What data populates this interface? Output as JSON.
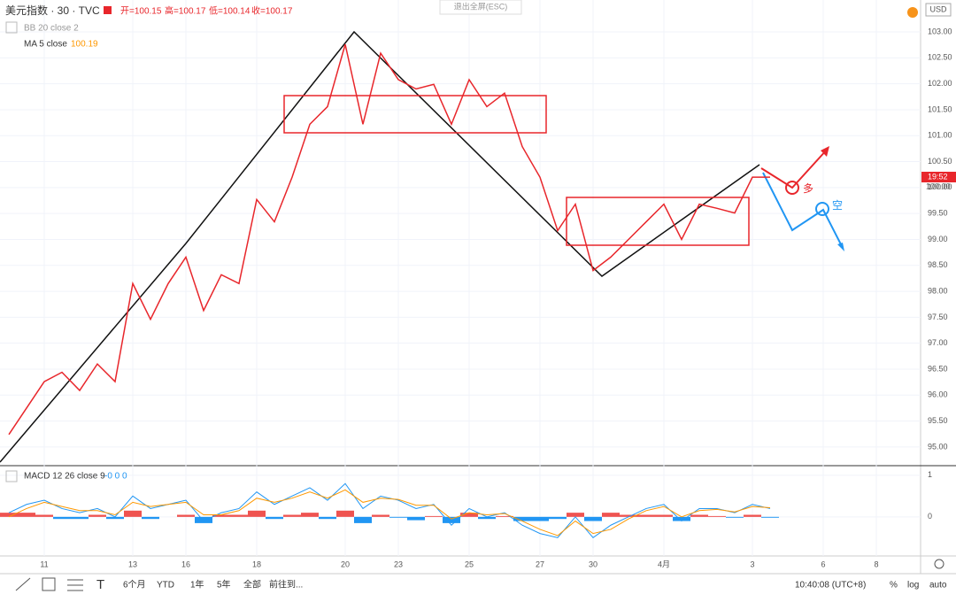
{
  "header": {
    "symbol": "美元指数 · 30 · TVC",
    "open": "开=100.15",
    "high": "高=100.17",
    "low": "低=100.14",
    "close": "收=100.17",
    "bb": "BB 20 close 2",
    "ma": "MA 5 close",
    "ma_value": "100.19",
    "exit": "退出全屏(ESC)",
    "currency": "USD",
    "price_tag": "19:52",
    "price_tag2": "100.00",
    "long": "多",
    "short": "空"
  },
  "toolbar": {
    "ranges": [
      "6个月",
      "YTD",
      "1年",
      "5年",
      "全部"
    ],
    "goto": "前往到...",
    "time": "10:40:08 (UTC+8)",
    "pct": "%",
    "log": "log",
    "auto": "auto"
  },
  "chart_data": [
    {
      "type": "line",
      "color": "#e8262b",
      "categories": [
        null,
        null,
        "11",
        null,
        null,
        null,
        null,
        "13",
        null,
        null,
        "16",
        null,
        null,
        null,
        "18",
        null,
        null,
        null,
        null,
        "20",
        null,
        null,
        "23",
        null,
        null,
        null,
        "25",
        null,
        null,
        null,
        "27",
        null,
        null,
        "30",
        null,
        null,
        null,
        "4月",
        null,
        null,
        null,
        null,
        "3",
        null,
        null,
        null,
        "6",
        null,
        null,
        "8",
        null,
        null
      ],
      "values": [
        95.24,
        95.75,
        96.26,
        96.44,
        96.09,
        96.6,
        96.26,
        98.15,
        97.46,
        98.15,
        98.66,
        97.63,
        98.32,
        98.15,
        99.77,
        99.34,
        100.2,
        101.22,
        101.56,
        102.76,
        101.22,
        102.59,
        102.08,
        101.9,
        101.99,
        101.22,
        102.08,
        101.56,
        101.82,
        100.79,
        100.2,
        99.17,
        99.68,
        98.4,
        98.66,
        99.0,
        99.34,
        99.68,
        99.0,
        99.68,
        99.6,
        99.51,
        100.2,
        100.2,
        null,
        null,
        null,
        null,
        null,
        null,
        null,
        null
      ],
      "ylim": [
        94.64,
        103.615
      ],
      "yticks": [
        {
          "value": 95,
          "label": "95.00"
        },
        {
          "value": 95.5,
          "label": "95.50"
        },
        {
          "value": 96,
          "label": "96.00"
        },
        {
          "value": 96.5,
          "label": "96.50"
        },
        {
          "value": 97,
          "label": "97.00"
        },
        {
          "value": 97.5,
          "label": "97.50"
        },
        {
          "value": 98,
          "label": "98.00"
        },
        {
          "value": 98.5,
          "label": "98.50"
        },
        {
          "value": 99,
          "label": "99.00"
        },
        {
          "value": 99.5,
          "label": "99.50"
        },
        {
          "value": 100,
          "label": "100.00"
        },
        {
          "value": 100.5,
          "label": "100.50"
        },
        {
          "value": 101,
          "label": "101.00"
        },
        {
          "value": 101.5,
          "label": "101.50"
        },
        {
          "value": 102,
          "label": "102.00"
        },
        {
          "value": 102.5,
          "label": "102.50"
        },
        {
          "value": 103,
          "label": "103.00"
        }
      ],
      "grid": true
    },
    {
      "type": "macd",
      "title": "MACD 12 26 close 9",
      "subtitle": "-0 0 0",
      "series": [
        {
          "color": "#2196f3",
          "values": [
            0.1,
            0.3,
            0.4,
            0.2,
            0.1,
            0.2,
            0.0,
            0.5,
            0.2,
            0.3,
            0.4,
            -0.1,
            0.1,
            0.2,
            0.6,
            0.3,
            0.5,
            0.7,
            0.4,
            0.8,
            0.2,
            0.5,
            0.4,
            0.2,
            0.3,
            -0.2,
            0.2,
            0.0,
            0.1,
            -0.2,
            -0.4,
            -0.5,
            0.0,
            -0.5,
            -0.2,
            0.0,
            0.2,
            0.3,
            -0.1,
            0.2,
            0.2,
            0.1,
            0.3,
            0.2,
            null,
            null,
            null,
            null,
            null,
            null,
            null,
            null
          ]
        },
        {
          "color": "#ff9800",
          "values": [
            0.0,
            0.2,
            0.35,
            0.25,
            0.15,
            0.15,
            0.05,
            0.35,
            0.25,
            0.3,
            0.35,
            0.05,
            0.05,
            0.15,
            0.45,
            0.35,
            0.45,
            0.6,
            0.45,
            0.65,
            0.35,
            0.45,
            0.42,
            0.28,
            0.28,
            -0.05,
            0.1,
            0.05,
            0.08,
            -0.1,
            -0.3,
            -0.45,
            -0.1,
            -0.4,
            -0.3,
            -0.05,
            0.15,
            0.25,
            0.0,
            0.15,
            0.18,
            0.12,
            0.25,
            0.22,
            null,
            null,
            null,
            null,
            null,
            null,
            null,
            null
          ]
        }
      ],
      "histogram": [
        0.1,
        0.1,
        0.05,
        -0.05,
        -0.05,
        0.05,
        -0.05,
        0.15,
        -0.05,
        0.0,
        0.05,
        -0.15,
        0.05,
        0.05,
        0.15,
        -0.05,
        0.05,
        0.1,
        -0.05,
        0.15,
        -0.15,
        0.05,
        -0.02,
        -0.08,
        0.02,
        -0.15,
        0.1,
        -0.05,
        0.02,
        -0.1,
        -0.1,
        -0.05,
        0.1,
        -0.1,
        0.1,
        0.05,
        0.05,
        0.05,
        -0.1,
        0.05,
        0.02,
        -0.02,
        0.05,
        -0.02,
        null,
        null,
        null,
        null,
        null,
        null,
        null,
        null
      ],
      "ylim": [
        -0.94,
        1.21
      ],
      "yticks": [
        0,
        1
      ]
    }
  ]
}
